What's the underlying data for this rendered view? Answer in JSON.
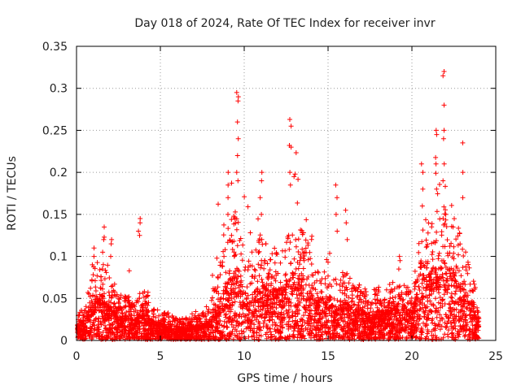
{
  "chart_data": {
    "type": "scatter",
    "title": "Day 018 of 2024, Rate Of TEC Index for receiver invr",
    "xlabel": "GPS time / hours",
    "ylabel": "ROTI / TECUs",
    "xlim": [
      0,
      25
    ],
    "ylim": [
      0,
      0.35
    ],
    "xticks": [
      0,
      5,
      10,
      15,
      20,
      25
    ],
    "yticks": [
      0,
      0.05,
      0.1,
      0.15,
      0.2,
      0.25,
      0.3,
      0.35
    ],
    "xtick_labels": [
      "0",
      "5",
      "10",
      "15",
      "20",
      "25"
    ],
    "ytick_labels": [
      "0",
      "0.05",
      "0.1",
      "0.15",
      "0.2",
      "0.25",
      "0.3",
      "0.35"
    ],
    "grid": true,
    "marker": "+",
    "color": "#ff0000",
    "envelope": {
      "x": [
        0,
        0.5,
        1.0,
        1.5,
        2.0,
        2.5,
        3.0,
        3.5,
        4.0,
        4.5,
        5.0,
        5.5,
        6.0,
        6.5,
        7.0,
        7.5,
        8.0,
        8.5,
        9.0,
        9.5,
        10.0,
        10.5,
        11.0,
        11.5,
        12.0,
        12.5,
        13.0,
        13.5,
        14.0,
        14.5,
        15.0,
        15.5,
        16.0,
        16.5,
        17.0,
        17.5,
        18.0,
        18.5,
        19.0,
        19.5,
        20.0,
        20.5,
        21.0,
        21.5,
        22.0,
        22.5,
        23.0,
        23.5,
        24.0
      ],
      "max": [
        0.03,
        0.045,
        0.11,
        0.13,
        0.12,
        0.065,
        0.06,
        0.045,
        0.145,
        0.05,
        0.045,
        0.035,
        0.03,
        0.03,
        0.05,
        0.04,
        0.05,
        0.19,
        0.2,
        0.295,
        0.2,
        0.13,
        0.2,
        0.13,
        0.1,
        0.165,
        0.26,
        0.16,
        0.145,
        0.07,
        0.185,
        0.075,
        0.155,
        0.065,
        0.07,
        0.06,
        0.08,
        0.07,
        0.1,
        0.075,
        0.06,
        0.2,
        0.18,
        0.25,
        0.32,
        0.23,
        0.18,
        0.13,
        0.05
      ],
      "typical": [
        0.015,
        0.02,
        0.04,
        0.045,
        0.035,
        0.025,
        0.025,
        0.02,
        0.03,
        0.02,
        0.015,
        0.015,
        0.012,
        0.012,
        0.015,
        0.015,
        0.02,
        0.04,
        0.06,
        0.07,
        0.05,
        0.04,
        0.06,
        0.05,
        0.05,
        0.06,
        0.07,
        0.06,
        0.05,
        0.035,
        0.045,
        0.03,
        0.04,
        0.03,
        0.03,
        0.025,
        0.03,
        0.03,
        0.035,
        0.03,
        0.03,
        0.06,
        0.07,
        0.07,
        0.08,
        0.07,
        0.055,
        0.04,
        0.02
      ]
    },
    "spikes": [
      {
        "x": 9.6,
        "values": [
          0.295,
          0.29,
          0.285,
          0.26,
          0.24,
          0.22,
          0.2,
          0.19
        ]
      },
      {
        "x": 12.75,
        "values": [
          0.263,
          0.255,
          0.232,
          0.23,
          0.2,
          0.185
        ]
      },
      {
        "x": 21.9,
        "values": [
          0.32,
          0.315,
          0.28,
          0.25,
          0.24,
          0.21,
          0.19
        ]
      },
      {
        "x": 21.45,
        "values": [
          0.25,
          0.245,
          0.21,
          0.18
        ]
      },
      {
        "x": 3.75,
        "values": [
          0.145,
          0.14,
          0.13,
          0.125
        ]
      },
      {
        "x": 15.5,
        "values": [
          0.185,
          0.17,
          0.15,
          0.13
        ]
      },
      {
        "x": 11.0,
        "values": [
          0.2,
          0.19,
          0.17,
          0.15
        ]
      },
      {
        "x": 20.6,
        "values": [
          0.21,
          0.2,
          0.18,
          0.16
        ]
      },
      {
        "x": 9.0,
        "values": [
          0.2,
          0.185,
          0.17,
          0.15
        ]
      },
      {
        "x": 1.6,
        "values": [
          0.135,
          0.12,
          0.105
        ]
      },
      {
        "x": 2.05,
        "values": [
          0.12,
          0.115,
          0.1
        ]
      },
      {
        "x": 1.0,
        "values": [
          0.11,
          0.1,
          0.09
        ]
      },
      {
        "x": 3.2,
        "values": [
          0.083
        ]
      },
      {
        "x": 16.1,
        "values": [
          0.155,
          0.14,
          0.12
        ]
      },
      {
        "x": 23.0,
        "values": [
          0.235,
          0.2,
          0.17
        ]
      },
      {
        "x": 19.25,
        "values": [
          0.1,
          0.095,
          0.085
        ]
      }
    ]
  }
}
